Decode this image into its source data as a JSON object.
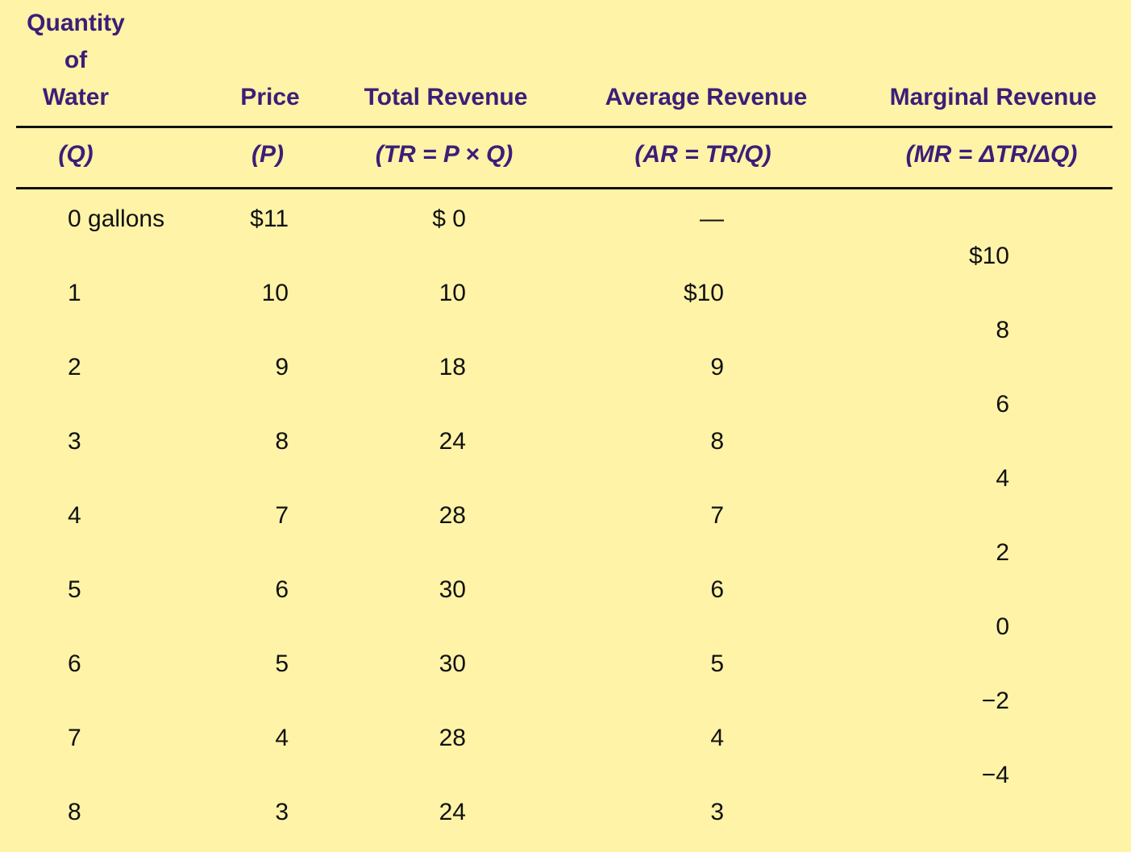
{
  "headers": {
    "quantity_line1": "Quantity",
    "quantity_line2": "of",
    "quantity_line3": "Water",
    "price": "Price",
    "total_revenue": "Total Revenue",
    "average_revenue": "Average Revenue",
    "marginal_revenue": "Marginal Revenue"
  },
  "subheaders": {
    "q": "(Q)",
    "p": "(P)",
    "tr": "(TR = P × Q)",
    "ar": "(AR = TR/Q)",
    "mr": "(MR = ΔTR/ΔQ)"
  },
  "rows": [
    {
      "q": "0 gallons",
      "p": "$11",
      "tr": "$  0",
      "ar": "—"
    },
    {
      "q": "1",
      "p": "10",
      "tr": "10",
      "ar": "$10"
    },
    {
      "q": "2",
      "p": "9",
      "tr": "18",
      "ar": "9"
    },
    {
      "q": "3",
      "p": "8",
      "tr": "24",
      "ar": "8"
    },
    {
      "q": "4",
      "p": "7",
      "tr": "28",
      "ar": "7"
    },
    {
      "q": "5",
      "p": "6",
      "tr": "30",
      "ar": "6"
    },
    {
      "q": "6",
      "p": "5",
      "tr": "30",
      "ar": "5"
    },
    {
      "q": "7",
      "p": "4",
      "tr": "28",
      "ar": "4"
    },
    {
      "q": "8",
      "p": "3",
      "tr": "24",
      "ar": "3"
    }
  ],
  "marginal": [
    "$10",
    "8",
    "6",
    "4",
    "2",
    "0",
    "−2",
    "−4"
  ],
  "colors": {
    "background": "#fff3a8",
    "header": "#3b1e78",
    "text": "#111111"
  }
}
